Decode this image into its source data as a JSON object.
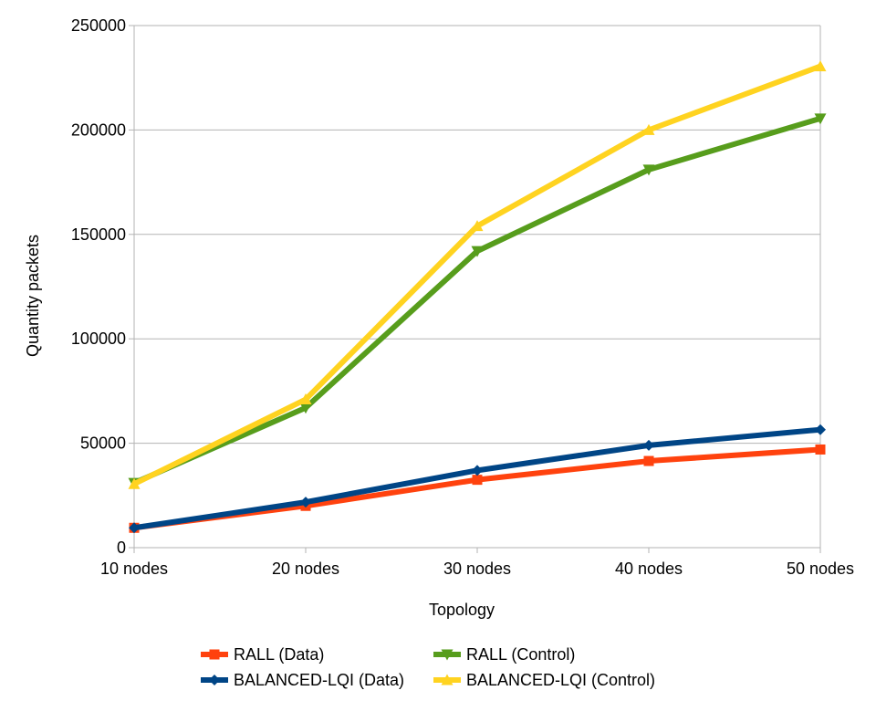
{
  "chart_data": {
    "type": "line",
    "title": "",
    "xlabel": "Topology",
    "ylabel": "Quantity packets",
    "categories": [
      "10 nodes",
      "20 nodes",
      "30 nodes",
      "40 nodes",
      "50 nodes"
    ],
    "ylim": [
      0,
      250000
    ],
    "yticks": [
      0,
      50000,
      100000,
      150000,
      200000,
      250000
    ],
    "ytick_labels": [
      "0",
      "50000",
      "100000",
      "150000",
      "200000",
      "250000"
    ],
    "grid": true,
    "legend_position": "bottom",
    "series": [
      {
        "name": "RALL (Data)",
        "color": "#ff420e",
        "marker": "square",
        "values": [
          9500,
          20000,
          32500,
          41500,
          47000
        ]
      },
      {
        "name": "RALL (Control)",
        "color": "#579d1c",
        "marker": "triangle-down",
        "values": [
          31000,
          67000,
          142000,
          181000,
          205500
        ]
      },
      {
        "name": "BALANCED-LQI (Data)",
        "color": "#004586",
        "marker": "diamond",
        "values": [
          9500,
          21800,
          37000,
          49000,
          56500
        ]
      },
      {
        "name": "BALANCED-LQI (Control)",
        "color": "#ffd320",
        "marker": "triangle-up",
        "values": [
          30500,
          71000,
          154000,
          200000,
          230500
        ]
      }
    ]
  }
}
